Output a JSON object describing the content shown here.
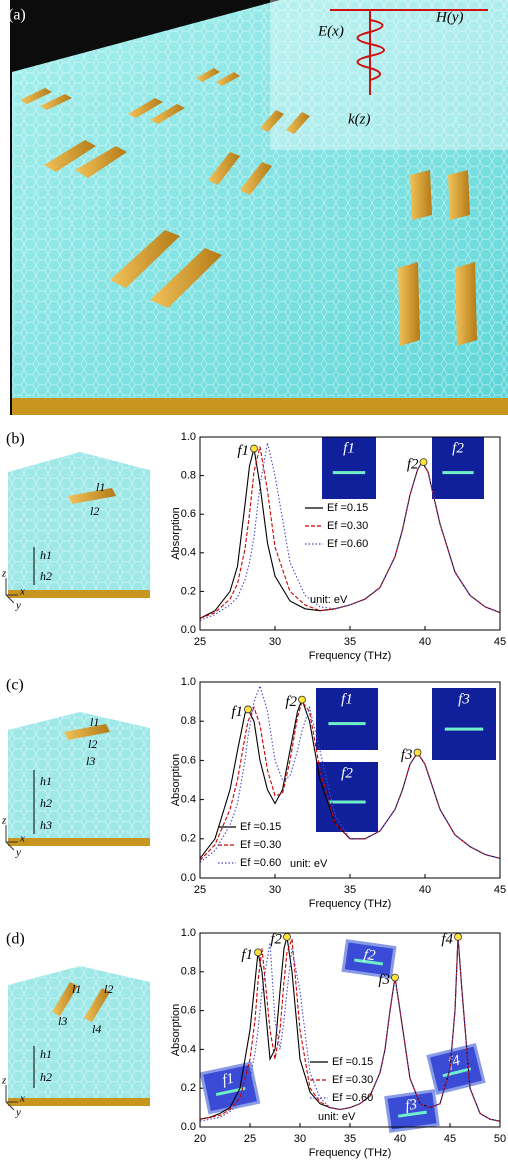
{
  "figure": {
    "panel_a": {
      "label": "(a)",
      "field_labels": [
        "E(x)",
        "H(y)",
        "k(z)"
      ]
    },
    "panel_b": {
      "label": "(b)",
      "schematic_labels": [
        "l1",
        "l2",
        "h1",
        "h2"
      ],
      "axis_labels": [
        "z",
        "x",
        "y"
      ]
    },
    "panel_c": {
      "label": "(c)",
      "schematic_labels": [
        "l1",
        "l2",
        "l3",
        "h1",
        "h2",
        "h3"
      ],
      "axis_labels": [
        "z",
        "x",
        "y"
      ]
    },
    "panel_d": {
      "label": "(d)",
      "schematic_labels": [
        "l1",
        "l2",
        "l3",
        "l4",
        "h1",
        "h2"
      ],
      "axis_labels": [
        "z",
        "x",
        "y"
      ]
    }
  },
  "chart_data": [
    {
      "type": "line",
      "xlabel": "Frequency (THz)",
      "ylabel": "Absorption",
      "x": [
        25,
        26,
        27,
        27.5,
        28,
        28.3,
        28.6,
        29,
        29.5,
        30,
        31,
        32,
        33,
        34,
        35,
        36,
        37,
        38,
        38.5,
        39,
        39.5,
        39.8,
        40.2,
        41,
        42,
        43,
        44,
        45
      ],
      "series": [
        {
          "name": "Ef =0.15",
          "color": "#000000",
          "style": "solid",
          "values": [
            0.06,
            0.1,
            0.2,
            0.33,
            0.65,
            0.85,
            0.94,
            0.75,
            0.45,
            0.28,
            0.15,
            0.11,
            0.1,
            0.11,
            0.13,
            0.16,
            0.22,
            0.38,
            0.52,
            0.7,
            0.83,
            0.87,
            0.82,
            0.55,
            0.3,
            0.18,
            0.12,
            0.09
          ]
        },
        {
          "name": "Ef =0.30",
          "color": "#cc0000",
          "style": "dashed",
          "values": [
            0.06,
            0.09,
            0.16,
            0.24,
            0.42,
            0.6,
            0.82,
            0.95,
            0.72,
            0.43,
            0.2,
            0.13,
            0.1,
            0.11,
            0.13,
            0.16,
            0.22,
            0.38,
            0.52,
            0.7,
            0.83,
            0.87,
            0.82,
            0.55,
            0.3,
            0.18,
            0.12,
            0.09
          ]
        },
        {
          "name": "Ef =0.60",
          "color": "#4a4ac8",
          "style": "dotted",
          "values": [
            0.05,
            0.08,
            0.13,
            0.17,
            0.26,
            0.35,
            0.48,
            0.75,
            0.97,
            0.8,
            0.35,
            0.18,
            0.12,
            0.11,
            0.13,
            0.16,
            0.22,
            0.38,
            0.52,
            0.7,
            0.83,
            0.87,
            0.82,
            0.55,
            0.3,
            0.18,
            0.12,
            0.09
          ]
        }
      ],
      "note": "unit: eV",
      "points": [
        {
          "label": "f1",
          "x": 28.6,
          "y": 0.94
        },
        {
          "label": "f2",
          "x": 39.9,
          "y": 0.87
        }
      ],
      "insets": [
        {
          "label": "f1"
        },
        {
          "label": "f2"
        }
      ],
      "xlim": [
        25,
        45
      ],
      "xticks": [
        25,
        30,
        35,
        40,
        45
      ],
      "ylim": [
        0,
        1
      ],
      "yticks": [
        {
          "value": 0,
          "label": "0.0"
        },
        0.2,
        0.4,
        0.6,
        0.8,
        {
          "value": 1,
          "label": "1.0"
        }
      ]
    },
    {
      "type": "line",
      "xlabel": "Frequency (THz)",
      "ylabel": "Absorption",
      "x": [
        25,
        26,
        27,
        27.5,
        28,
        28.2,
        28.6,
        29,
        29.5,
        30,
        30.5,
        31,
        31.5,
        31.8,
        32.3,
        33,
        34,
        35,
        36,
        37,
        38,
        38.5,
        39,
        39.5,
        40,
        41,
        42,
        43,
        44,
        45
      ],
      "series": [
        {
          "name": "Ef =0.15",
          "color": "#000000",
          "style": "solid",
          "values": [
            0.1,
            0.2,
            0.45,
            0.65,
            0.84,
            0.86,
            0.8,
            0.6,
            0.45,
            0.38,
            0.45,
            0.65,
            0.85,
            0.91,
            0.8,
            0.5,
            0.28,
            0.2,
            0.2,
            0.24,
            0.35,
            0.45,
            0.58,
            0.64,
            0.58,
            0.35,
            0.22,
            0.16,
            0.12,
            0.1
          ]
        },
        {
          "name": "Ef =0.30",
          "color": "#cc0000",
          "style": "dashed",
          "values": [
            0.09,
            0.17,
            0.35,
            0.5,
            0.72,
            0.8,
            0.87,
            0.78,
            0.55,
            0.42,
            0.43,
            0.6,
            0.82,
            0.9,
            0.85,
            0.55,
            0.28,
            0.2,
            0.2,
            0.24,
            0.35,
            0.45,
            0.58,
            0.64,
            0.58,
            0.35,
            0.22,
            0.16,
            0.12,
            0.1
          ]
        },
        {
          "name": "Ef =0.60",
          "color": "#4a4ac8",
          "style": "dotted",
          "values": [
            0.08,
            0.14,
            0.27,
            0.38,
            0.6,
            0.72,
            0.9,
            0.98,
            0.85,
            0.6,
            0.5,
            0.52,
            0.65,
            0.75,
            0.87,
            0.65,
            0.32,
            0.2,
            0.2,
            0.24,
            0.35,
            0.45,
            0.58,
            0.64,
            0.58,
            0.35,
            0.22,
            0.16,
            0.12,
            0.1
          ]
        }
      ],
      "note": "unit: eV",
      "points": [
        {
          "label": "f1",
          "x": 28.2,
          "y": 0.86
        },
        {
          "label": "f2",
          "x": 31.8,
          "y": 0.91
        },
        {
          "label": "f3",
          "x": 39.5,
          "y": 0.64
        }
      ],
      "insets": [
        {
          "label": "f1"
        },
        {
          "label": "f2"
        },
        {
          "label": "f3"
        }
      ],
      "xlim": [
        25,
        45
      ],
      "xticks": [
        25,
        30,
        35,
        40,
        45
      ],
      "ylim": [
        0,
        1
      ],
      "yticks": [
        {
          "value": 0,
          "label": "0.0"
        },
        0.2,
        0.4,
        0.6,
        0.8,
        {
          "value": 1,
          "label": "1.0"
        }
      ]
    },
    {
      "type": "line",
      "xlabel": "Frequency (THz)",
      "ylabel": "Absorption",
      "x": [
        20,
        21,
        22,
        23,
        24,
        25,
        25.5,
        25.8,
        26.2,
        27,
        27.5,
        28,
        28.4,
        28.7,
        29.2,
        30,
        31,
        32,
        33,
        34,
        35,
        36,
        37,
        38,
        38.5,
        39,
        39.5,
        40,
        41,
        42,
        43,
        44,
        45,
        45.5,
        45.8,
        46.2,
        47,
        48,
        49,
        50
      ],
      "series": [
        {
          "name": "Ef =0.15",
          "color": "#000000",
          "style": "solid",
          "values": [
            0.04,
            0.05,
            0.07,
            0.1,
            0.2,
            0.5,
            0.75,
            0.9,
            0.8,
            0.35,
            0.4,
            0.7,
            0.92,
            0.98,
            0.8,
            0.35,
            0.18,
            0.12,
            0.1,
            0.09,
            0.1,
            0.12,
            0.16,
            0.28,
            0.4,
            0.6,
            0.77,
            0.6,
            0.25,
            0.12,
            0.1,
            0.12,
            0.3,
            0.6,
            0.98,
            0.7,
            0.2,
            0.07,
            0.04,
            0.03
          ]
        },
        {
          "name": "Ef =0.30",
          "color": "#cc0000",
          "style": "dashed",
          "values": [
            0.04,
            0.05,
            0.06,
            0.09,
            0.15,
            0.35,
            0.55,
            0.75,
            0.92,
            0.5,
            0.35,
            0.5,
            0.75,
            0.9,
            0.97,
            0.5,
            0.2,
            0.13,
            0.1,
            0.09,
            0.1,
            0.12,
            0.16,
            0.28,
            0.4,
            0.6,
            0.77,
            0.6,
            0.25,
            0.12,
            0.1,
            0.12,
            0.3,
            0.6,
            0.98,
            0.7,
            0.2,
            0.07,
            0.04,
            0.03
          ]
        },
        {
          "name": "Ef =0.60",
          "color": "#4a4ac8",
          "style": "dotted",
          "values": [
            0.03,
            0.04,
            0.05,
            0.08,
            0.12,
            0.25,
            0.38,
            0.5,
            0.7,
            0.95,
            0.55,
            0.4,
            0.55,
            0.7,
            0.92,
            0.7,
            0.28,
            0.15,
            0.1,
            0.09,
            0.1,
            0.12,
            0.16,
            0.28,
            0.4,
            0.6,
            0.77,
            0.6,
            0.25,
            0.12,
            0.1,
            0.12,
            0.3,
            0.6,
            0.98,
            0.7,
            0.2,
            0.07,
            0.04,
            0.03
          ]
        }
      ],
      "note": "unit: eV",
      "points": [
        {
          "label": "f1",
          "x": 25.8,
          "y": 0.9
        },
        {
          "label": "f2",
          "x": 28.7,
          "y": 0.98
        },
        {
          "label": "f3",
          "x": 39.5,
          "y": 0.77
        },
        {
          "label": "f4",
          "x": 45.8,
          "y": 0.98
        }
      ],
      "insets": [
        {
          "label": "f1"
        },
        {
          "label": "f2"
        },
        {
          "label": "f3"
        },
        {
          "label": "f4"
        }
      ],
      "xlim": [
        20,
        50
      ],
      "xticks": [
        20,
        25,
        30,
        35,
        40,
        45,
        50
      ],
      "ylim": [
        0,
        1
      ],
      "yticks": [
        {
          "value": 0,
          "label": "0.0"
        },
        0.2,
        0.4,
        0.6,
        0.8,
        {
          "value": 1,
          "label": "1.0"
        }
      ]
    }
  ]
}
